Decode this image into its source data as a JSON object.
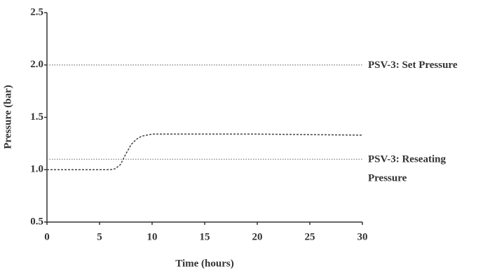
{
  "chart_data": {
    "type": "line",
    "x_label": "Time (hours)",
    "y_label": "Pressure (bar)",
    "x": [
      0,
      2,
      4,
      6,
      6.5,
      7,
      7.5,
      8,
      8.5,
      9,
      10,
      12,
      15,
      20,
      25,
      30
    ],
    "series": [
      {
        "color": "#444444",
        "values": [
          1.0,
          1.0,
          1.0,
          1.0,
          1.01,
          1.05,
          1.15,
          1.24,
          1.29,
          1.32,
          1.34,
          1.34,
          1.34,
          1.34,
          1.335,
          1.33
        ]
      }
    ],
    "xlim": [
      0,
      30
    ],
    "ylim": [
      0.5,
      2.5
    ],
    "xticks": [
      0,
      5,
      10,
      15,
      20,
      25,
      30
    ],
    "yticks": [
      0.5,
      {
        "value": 1,
        "label": "1.0"
      },
      1.5,
      {
        "value": 2,
        "label": "2.0"
      },
      2.5
    ],
    "reference_lines": [
      {
        "value": 2,
        "label": [
          "PSV-3: Set Pressure"
        ],
        "color": "#777777"
      },
      {
        "value": 1.1,
        "label": [
          "PSV-3: Reseating",
          "Pressure"
        ],
        "color": "#777777"
      }
    ]
  }
}
